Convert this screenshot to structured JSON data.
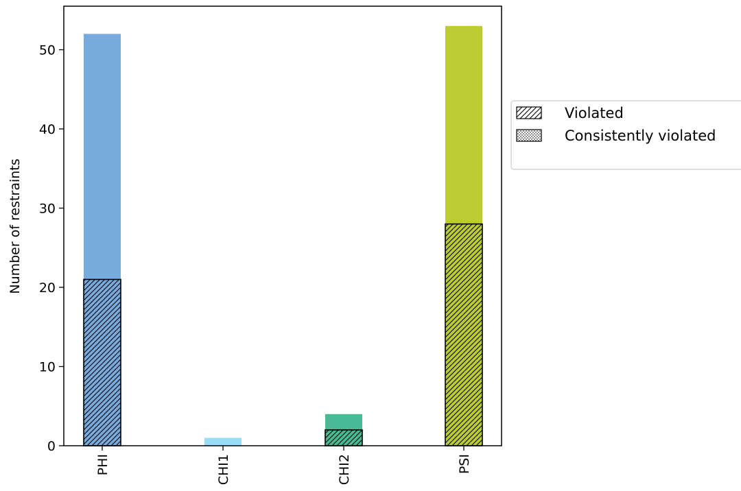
{
  "chart_data": {
    "type": "bar",
    "categories": [
      "PHI",
      "CHI1",
      "CHI2",
      "PSI"
    ],
    "series": [
      {
        "key": "total",
        "values": [
          52,
          1,
          4,
          53
        ]
      },
      {
        "key": "violated",
        "values": [
          21,
          0,
          2,
          28
        ]
      }
    ],
    "category_colors": [
      "#78abdd",
      "#99dcf6",
      "#46bb95",
      "#bccd33"
    ],
    "ylabel": "Number of restraints",
    "xlabel": "",
    "ylim": [
      0,
      55.5
    ],
    "yticks": [
      0,
      10,
      20,
      30,
      40,
      50
    ],
    "grid": false,
    "legend": {
      "placement": "outside-right",
      "entries": [
        {
          "label": "Violated",
          "pattern": "diagonal-hatch"
        },
        {
          "label": "Consistently violated",
          "pattern": "dotted-hatch"
        }
      ]
    }
  }
}
